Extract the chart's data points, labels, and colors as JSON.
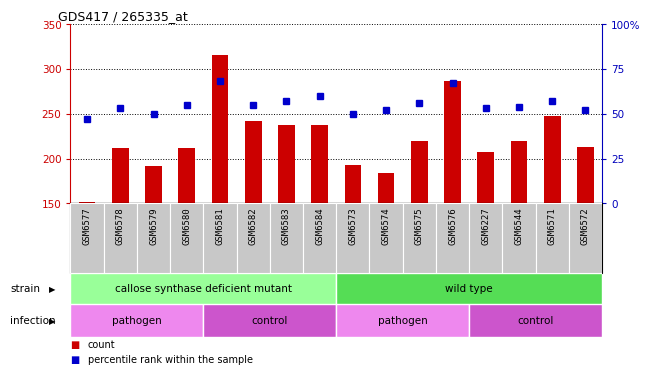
{
  "title": "GDS417 / 265335_at",
  "samples": [
    "GSM6577",
    "GSM6578",
    "GSM6579",
    "GSM6580",
    "GSM6581",
    "GSM6582",
    "GSM6583",
    "GSM6584",
    "GSM6573",
    "GSM6574",
    "GSM6575",
    "GSM6576",
    "GSM6227",
    "GSM6544",
    "GSM6571",
    "GSM6572"
  ],
  "counts": [
    152,
    212,
    192,
    212,
    315,
    242,
    238,
    237,
    193,
    184,
    220,
    286,
    207,
    220,
    247,
    213
  ],
  "percentiles": [
    47,
    53,
    50,
    55,
    68,
    55,
    57,
    60,
    50,
    52,
    56,
    67,
    53,
    54,
    57,
    52
  ],
  "ylim_left": [
    150,
    350
  ],
  "ylim_right": [
    0,
    100
  ],
  "yticks_left": [
    150,
    200,
    250,
    300,
    350
  ],
  "yticks_right": [
    0,
    25,
    50,
    75,
    100
  ],
  "bar_color": "#cc0000",
  "dot_color": "#0000cc",
  "strain_groups": [
    {
      "label": "callose synthase deficient mutant",
      "start": 0,
      "end": 8,
      "color": "#99ff99"
    },
    {
      "label": "wild type",
      "start": 8,
      "end": 16,
      "color": "#55dd55"
    }
  ],
  "infection_groups": [
    {
      "label": "pathogen",
      "start": 0,
      "end": 4,
      "color": "#ee88ee"
    },
    {
      "label": "control",
      "start": 4,
      "end": 8,
      "color": "#cc55cc"
    },
    {
      "label": "pathogen",
      "start": 8,
      "end": 12,
      "color": "#ee88ee"
    },
    {
      "label": "control",
      "start": 12,
      "end": 16,
      "color": "#cc55cc"
    }
  ],
  "legend_items": [
    {
      "label": "count",
      "color": "#cc0000"
    },
    {
      "label": "percentile rank within the sample",
      "color": "#0000cc"
    }
  ],
  "axis_color_left": "#cc0000",
  "axis_color_right": "#0000bb",
  "bg_color": "#ffffff",
  "tick_label_bg": "#c8c8c8"
}
